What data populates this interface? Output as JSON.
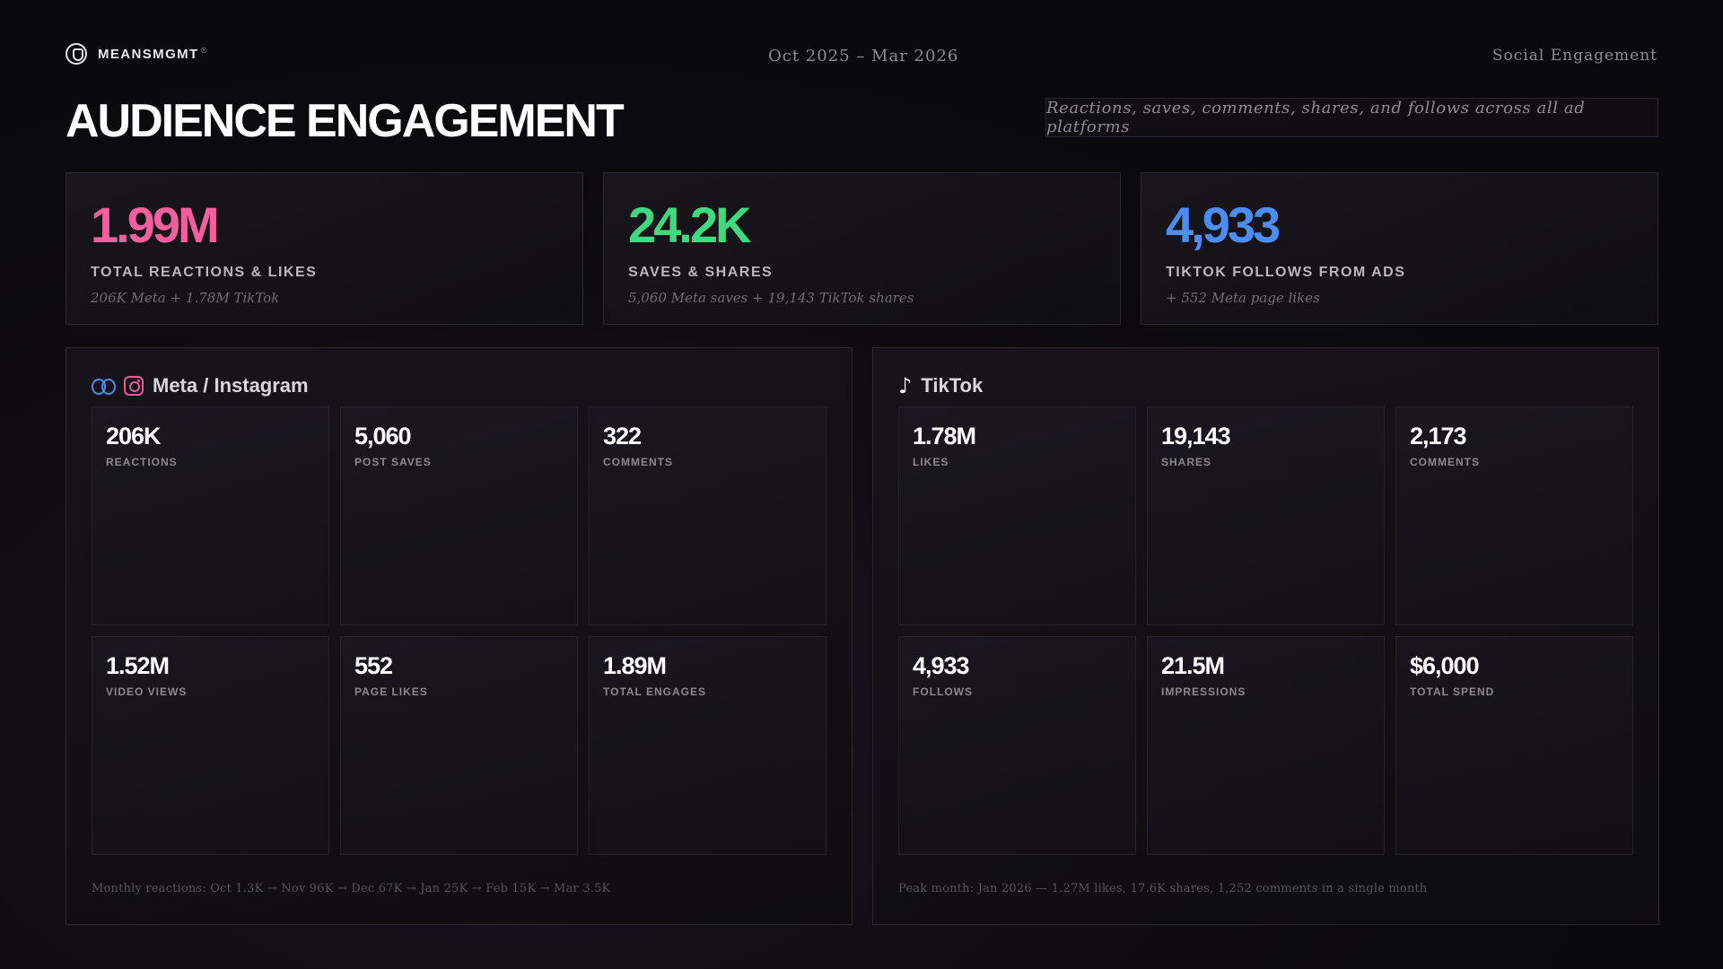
{
  "header": {
    "brand_name": "MEANSMGMT",
    "brand_mark": "®",
    "date_range": "Oct 2025 – Mar 2026",
    "section": "Social Engagement"
  },
  "page": {
    "title": "AUDIENCE ENGAGEMENT",
    "subtitle": "Reactions, saves, comments, shares, and follows across all ad platforms"
  },
  "kpis": [
    {
      "value": "1.99M",
      "label": "TOTAL REACTIONS & LIKES",
      "sub": "206K Meta + 1.78M TikTok",
      "color": "#f0609e"
    },
    {
      "value": "24.2K",
      "label": "SAVES & SHARES",
      "sub": "5,060 Meta saves + 19,143 TikTok shares",
      "color": "#3fd97f"
    },
    {
      "value": "4,933",
      "label": "TIKTOK FOLLOWS FROM ADS",
      "sub": "+ 552 Meta page likes",
      "color": "#4b8df2"
    }
  ],
  "meta": {
    "title": "Meta / Instagram",
    "icons": [
      "meta-icon",
      "instagram-icon"
    ],
    "tiles": [
      {
        "value": "206K",
        "label": "REACTIONS"
      },
      {
        "value": "5,060",
        "label": "POST SAVES"
      },
      {
        "value": "322",
        "label": "COMMENTS"
      },
      {
        "value": "1.52M",
        "label": "VIDEO VIEWS"
      },
      {
        "value": "552",
        "label": "PAGE LIKES"
      },
      {
        "value": "1.89M",
        "label": "TOTAL ENGAGES"
      }
    ],
    "footer": "Monthly reactions: Oct 1.3K → Nov 96K → Dec 67K → Jan 25K → Feb 15K → Mar 3.5K"
  },
  "tiktok": {
    "title": "TikTok",
    "icons": [
      "tiktok-icon"
    ],
    "tiles": [
      {
        "value": "1.78M",
        "label": "LIKES"
      },
      {
        "value": "19,143",
        "label": "SHARES"
      },
      {
        "value": "2,173",
        "label": "COMMENTS"
      },
      {
        "value": "4,933",
        "label": "FOLLOWS"
      },
      {
        "value": "21.5M",
        "label": "IMPRESSIONS"
      },
      {
        "value": "$6,000",
        "label": "TOTAL SPEND"
      }
    ],
    "footer": "Peak month: Jan 2026 — 1.27M likes, 17.6K shares, 1,252 comments in a single month"
  }
}
